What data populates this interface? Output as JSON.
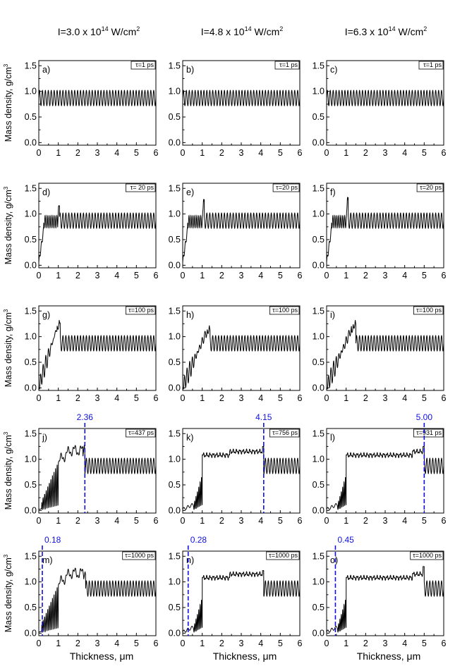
{
  "columns": [
    {
      "prefix": "I=3.0 x 10",
      "exp": "14",
      "unit": " W/cm",
      "unit_exp": "2"
    },
    {
      "prefix": "I=4.8 x 10",
      "exp": "14",
      "unit": " W/cm",
      "unit_exp": "2"
    },
    {
      "prefix": "I=6.3 x 10",
      "exp": "14",
      "unit": " W/cm",
      "unit_exp": "2"
    }
  ],
  "axis_text": {
    "ylabel": "Mass density, g/cm",
    "ylabel_exp": "3",
    "xlabel": "Thickness, μm"
  },
  "style": {
    "curve_color": "#000000",
    "marker_color": "#1010e0",
    "grid": false,
    "tau_box_position": "top-right",
    "panel_label_position": "top-left"
  },
  "chart_data": [
    {
      "type": "line",
      "panel": "a)",
      "tau": "τ=1 ps",
      "xlim": [
        0,
        6
      ],
      "ylim": [
        -0.05,
        1.6
      ],
      "xticks": [
        "0",
        "1",
        "2",
        "3",
        "4",
        "5",
        "6"
      ],
      "yticks": [
        "0.0",
        "0.5",
        "1.0",
        "1.5"
      ],
      "profile": "initial",
      "front": 0.0,
      "peak": 1.0,
      "marker": null
    },
    {
      "type": "line",
      "panel": "b)",
      "tau": "τ=1 ps",
      "xlim": [
        0,
        6
      ],
      "ylim": [
        -0.05,
        1.6
      ],
      "xticks": [
        "0",
        "1",
        "2",
        "3",
        "4",
        "5",
        "6"
      ],
      "yticks": [
        "0.0",
        "0.5",
        "1.0",
        "1.5"
      ],
      "profile": "initial",
      "front": 0.0,
      "peak": 1.0,
      "marker": null
    },
    {
      "type": "line",
      "panel": "c)",
      "tau": "τ=1 ps",
      "xlim": [
        0,
        6
      ],
      "ylim": [
        -0.05,
        1.6
      ],
      "xticks": [
        "0",
        "1",
        "2",
        "3",
        "4",
        "5",
        "6"
      ],
      "yticks": [
        "0.0",
        "0.5",
        "1.0",
        "1.5"
      ],
      "profile": "initial",
      "front": 0.0,
      "peak": 1.0,
      "marker": null
    },
    {
      "type": "line",
      "panel": "d)",
      "tau": "τ= 20 ps",
      "xlim": [
        0,
        6
      ],
      "ylim": [
        -0.05,
        1.6
      ],
      "xticks": [
        "0",
        "1",
        "2",
        "3",
        "4",
        "5",
        "6"
      ],
      "yticks": [
        "0.0",
        "0.5",
        "1.0",
        "1.5"
      ],
      "profile": "early",
      "front": 1.05,
      "peak": 1.16,
      "marker": null
    },
    {
      "type": "line",
      "panel": "e)",
      "tau": "τ=20 ps",
      "xlim": [
        0,
        6
      ],
      "ylim": [
        -0.05,
        1.6
      ],
      "xticks": [
        "0",
        "1",
        "2",
        "3",
        "4",
        "5",
        "6"
      ],
      "yticks": [
        "0.0",
        "0.5",
        "1.0",
        "1.5"
      ],
      "profile": "early",
      "front": 1.1,
      "peak": 1.28,
      "marker": null
    },
    {
      "type": "line",
      "panel": "f)",
      "tau": "τ=20 ps",
      "xlim": [
        0,
        6
      ],
      "ylim": [
        -0.05,
        1.6
      ],
      "xticks": [
        "0",
        "1",
        "2",
        "3",
        "4",
        "5",
        "6"
      ],
      "yticks": [
        "0.0",
        "0.5",
        "1.0",
        "1.5"
      ],
      "profile": "early",
      "front": 1.1,
      "peak": 1.32,
      "marker": null
    },
    {
      "type": "line",
      "panel": "g)",
      "tau": "τ=100 ps",
      "xlim": [
        0,
        6
      ],
      "ylim": [
        -0.05,
        1.6
      ],
      "xticks": [
        "0",
        "1",
        "2",
        "3",
        "4",
        "5",
        "6"
      ],
      "yticks": [
        "0.0",
        "0.5",
        "1.0",
        "1.5"
      ],
      "profile": "ramp",
      "front": 1.1,
      "peak": 1.38,
      "marker": null
    },
    {
      "type": "line",
      "panel": "h)",
      "tau": "τ=100 ps",
      "xlim": [
        0,
        6
      ],
      "ylim": [
        -0.05,
        1.6
      ],
      "xticks": [
        "0",
        "1",
        "2",
        "3",
        "4",
        "5",
        "6"
      ],
      "yticks": [
        "0.0",
        "0.5",
        "1.0",
        "1.5"
      ],
      "profile": "ramp",
      "front": 1.4,
      "peak": 1.25,
      "marker": null
    },
    {
      "type": "line",
      "panel": "i)",
      "tau": "τ=100 ps",
      "xlim": [
        0,
        6
      ],
      "ylim": [
        -0.05,
        1.6
      ],
      "xticks": [
        "0",
        "1",
        "2",
        "3",
        "4",
        "5",
        "6"
      ],
      "yticks": [
        "0.0",
        "0.5",
        "1.0",
        "1.5"
      ],
      "profile": "ramp",
      "front": 1.5,
      "peak": 1.35,
      "marker": null
    },
    {
      "type": "line",
      "panel": "j)",
      "tau": "τ=437 ps",
      "xlim": [
        0,
        6
      ],
      "ylim": [
        -0.05,
        1.6
      ],
      "xticks": [
        "0",
        "1",
        "2",
        "3",
        "4",
        "5",
        "6"
      ],
      "yticks": [
        "0.0",
        "0.5",
        "1.0",
        "1.5"
      ],
      "profile": "wide",
      "front": 2.36,
      "peak": 1.28,
      "marker": {
        "x": 2.36,
        "label": "2.36",
        "placement": "top"
      }
    },
    {
      "type": "line",
      "panel": "k)",
      "tau": "τ=756 ps",
      "xlim": [
        0,
        6
      ],
      "ylim": [
        -0.05,
        1.6
      ],
      "xticks": [
        "0",
        "1",
        "2",
        "3",
        "4",
        "5",
        "6"
      ],
      "yticks": [
        "0.0",
        "0.5",
        "1.0",
        "1.5"
      ],
      "profile": "plateau",
      "front": 4.15,
      "peak": 1.25,
      "marker": {
        "x": 4.15,
        "label": "4.15",
        "placement": "top"
      }
    },
    {
      "type": "line",
      "panel": "l)",
      "tau": "τ=931 ps",
      "xlim": [
        0,
        6
      ],
      "ylim": [
        -0.05,
        1.6
      ],
      "xticks": [
        "0",
        "1",
        "2",
        "3",
        "4",
        "5",
        "6"
      ],
      "yticks": [
        "0.0",
        "0.5",
        "1.0",
        "1.5"
      ],
      "profile": "plateau",
      "front": 5.0,
      "peak": 1.25,
      "marker": {
        "x": 5.0,
        "label": "5.00",
        "placement": "top"
      }
    },
    {
      "type": "line",
      "panel": "m)",
      "tau": "τ=1000 ps",
      "xlim": [
        0,
        6
      ],
      "ylim": [
        -0.05,
        1.6
      ],
      "xticks": [
        "0",
        "1",
        "2",
        "3",
        "4",
        "5",
        "6"
      ],
      "yticks": [
        "0.0",
        "0.5",
        "1.0",
        "1.5"
      ],
      "profile": "wide",
      "front": 2.4,
      "peak": 1.2,
      "marker": {
        "x": 0.18,
        "label": "0.18",
        "placement": "top"
      }
    },
    {
      "type": "line",
      "panel": "n)",
      "tau": "τ=1000 ps",
      "xlim": [
        0,
        6
      ],
      "ylim": [
        -0.05,
        1.6
      ],
      "xticks": [
        "0",
        "1",
        "2",
        "3",
        "4",
        "5",
        "6"
      ],
      "yticks": [
        "0.0",
        "0.5",
        "1.0",
        "1.5"
      ],
      "profile": "plateau",
      "front": 4.15,
      "peak": 1.22,
      "marker": {
        "x": 0.28,
        "label": "0.28",
        "placement": "top"
      }
    },
    {
      "type": "line",
      "panel": "o)",
      "tau": "τ=1000 ps",
      "xlim": [
        0,
        6
      ],
      "ylim": [
        -0.05,
        1.6
      ],
      "xticks": [
        "0",
        "1",
        "2",
        "3",
        "4",
        "5",
        "6"
      ],
      "yticks": [
        "0.0",
        "0.5",
        "1.0",
        "1.5"
      ],
      "profile": "plateau",
      "front": 5.0,
      "peak": 1.3,
      "marker": {
        "x": 0.45,
        "label": "0.45",
        "placement": "top"
      }
    }
  ]
}
